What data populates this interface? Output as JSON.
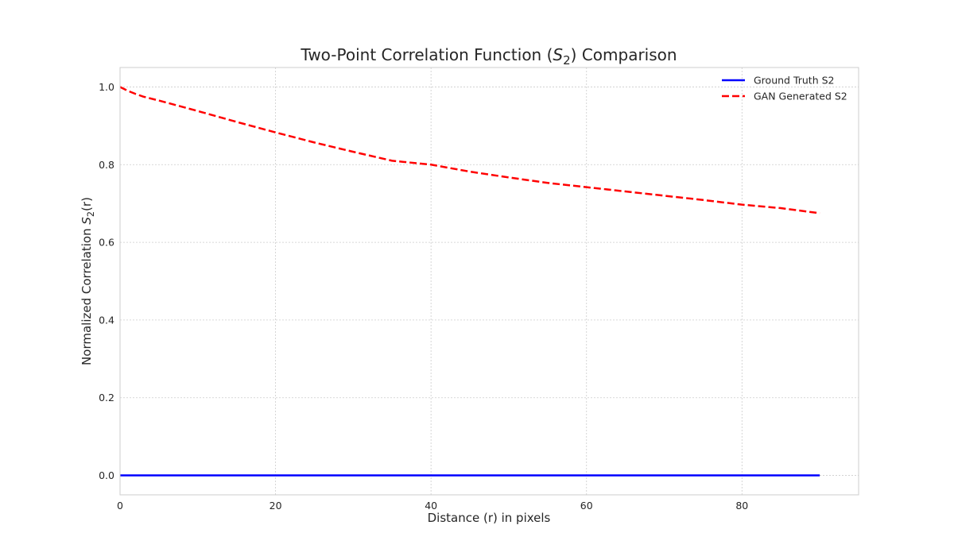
{
  "chart_data": {
    "type": "line",
    "title": "Two-Point Correlation Function (S2) Comparison",
    "title_parts": {
      "before": "Two-Point Correlation Function (",
      "symbol": "S",
      "sub": "2",
      "after": ") Comparison"
    },
    "xlabel": "Distance (r) in pixels",
    "ylabel": "Normalized Correlation S2(r)",
    "ylabel_parts": {
      "before": "Normalized Correlation ",
      "symbol": "S",
      "sub": "2",
      "after": "(r)"
    },
    "xlim": [
      0,
      95
    ],
    "ylim": [
      -0.05,
      1.05
    ],
    "xticks": [
      0,
      20,
      40,
      60,
      80
    ],
    "yticks": [
      0.0,
      0.2,
      0.4,
      0.6,
      0.8,
      1.0
    ],
    "xtick_labels": [
      "0",
      "20",
      "40",
      "60",
      "80"
    ],
    "ytick_labels": [
      "0.0",
      "0.2",
      "0.4",
      "0.6",
      "0.8",
      "1.0"
    ],
    "grid": true,
    "legend_position": "top-right",
    "series": [
      {
        "name": "Ground Truth S2",
        "color": "#0000ff",
        "style": "solid",
        "x": [
          0,
          10,
          20,
          30,
          40,
          50,
          60,
          70,
          80,
          90
        ],
        "y": [
          0.0,
          0.0,
          0.0,
          0.0,
          0.0,
          0.0,
          0.0,
          0.0,
          0.0,
          0.0
        ]
      },
      {
        "name": "GAN Generated S2",
        "color": "#ff0000",
        "style": "dashed",
        "x": [
          0,
          1,
          2,
          3,
          5,
          10,
          15,
          20,
          25,
          30,
          35,
          40,
          45,
          50,
          55,
          60,
          65,
          70,
          75,
          80,
          85,
          90
        ],
        "y": [
          1.0,
          0.99,
          0.982,
          0.975,
          0.965,
          0.938,
          0.91,
          0.883,
          0.857,
          0.833,
          0.81,
          0.8,
          0.782,
          0.767,
          0.753,
          0.742,
          0.731,
          0.72,
          0.709,
          0.697,
          0.688,
          0.675
        ]
      }
    ]
  }
}
